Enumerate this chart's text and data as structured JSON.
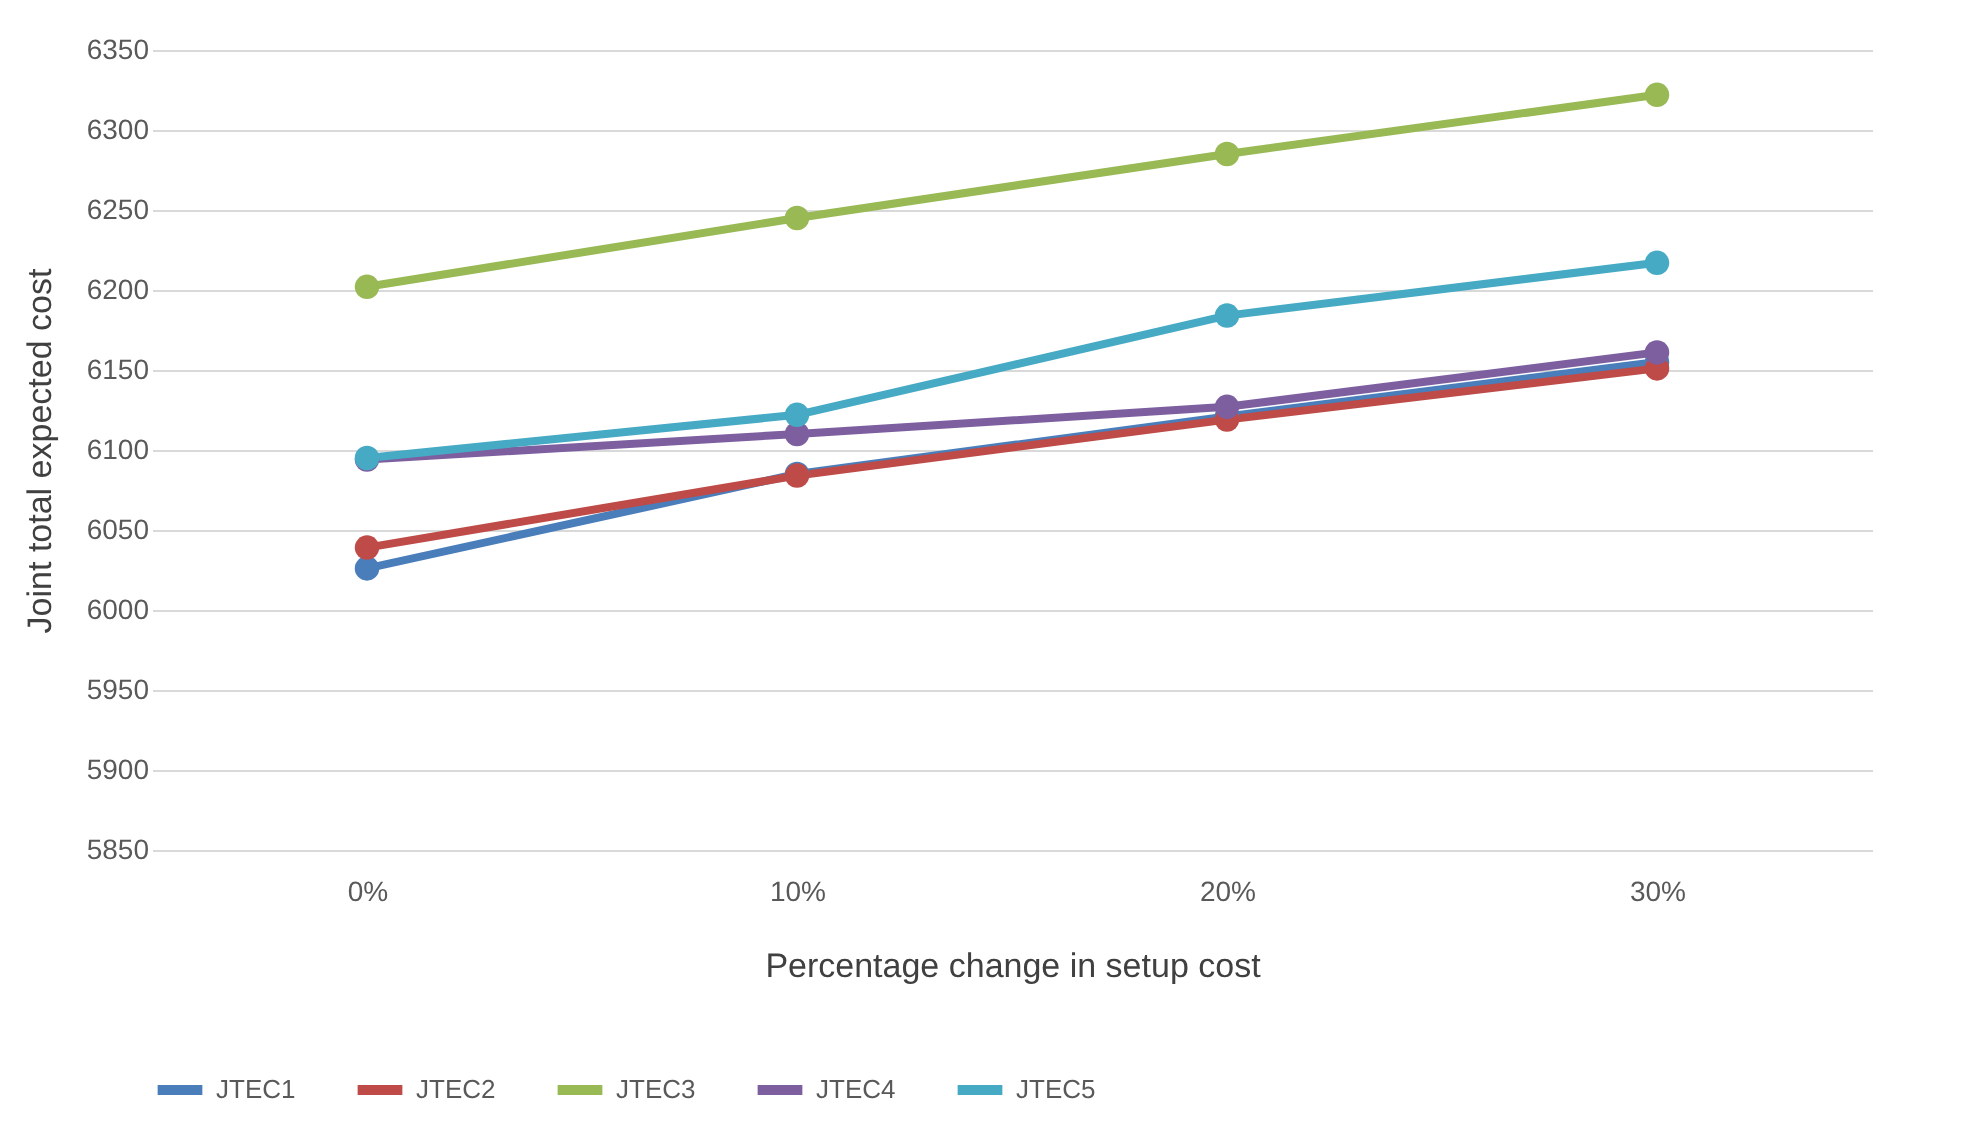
{
  "chart_data": {
    "type": "line",
    "xlabel": "Percentage change in setup cost",
    "ylabel": "Joint total expected cost",
    "categories": [
      "0%",
      "10%",
      "20%",
      "30%"
    ],
    "series": [
      {
        "name": "JTEC1",
        "color": "#4a7ebb",
        "values": [
          6026,
          6085,
          6121,
          6155
        ]
      },
      {
        "name": "JTEC2",
        "color": "#be4b48",
        "values": [
          6039,
          6084,
          6119,
          6151
        ]
      },
      {
        "name": "JTEC3",
        "color": "#98b954",
        "values": [
          6202,
          6245,
          6285,
          6322
        ]
      },
      {
        "name": "JTEC4",
        "color": "#7d5fa0",
        "values": [
          6094,
          6110,
          6127,
          6161
        ]
      },
      {
        "name": "JTEC5",
        "color": "#46aac5",
        "values": [
          6095,
          6122,
          6184,
          6217
        ]
      }
    ],
    "ylim": [
      5850,
      6350
    ],
    "yticks": [
      5850,
      5900,
      5950,
      6000,
      6050,
      6100,
      6150,
      6200,
      6250,
      6300,
      6350
    ],
    "grid": "y",
    "legend": "bottom",
    "marker": "circle",
    "line_style": "solid"
  }
}
